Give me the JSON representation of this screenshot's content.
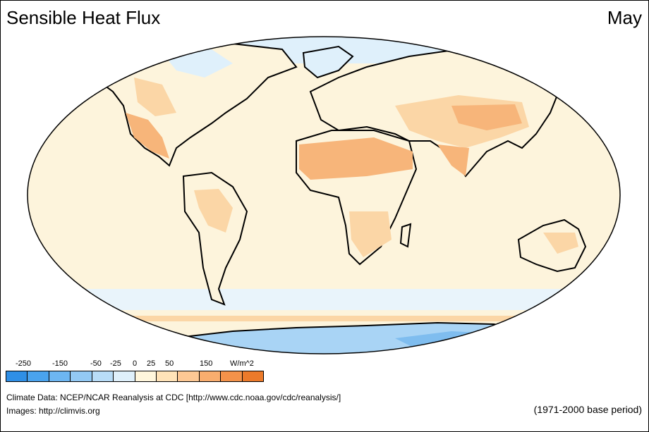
{
  "header": {
    "title": "Sensible Heat Flux",
    "month": "May"
  },
  "legend": {
    "labels": [
      "-250",
      "-150",
      "-50",
      "-25",
      "0",
      "25",
      "50",
      "150",
      "W/m^2"
    ],
    "colors": [
      "#2f8fe6",
      "#4aa3ee",
      "#6db6f2",
      "#93c9f4",
      "#b8dcf7",
      "#dff0fb",
      "#fff6dc",
      "#ffe3b8",
      "#fdc894",
      "#f9ad6e",
      "#f3924a",
      "#ec7a2a"
    ]
  },
  "map": {
    "ocean_color": "#fdf4dc",
    "land_warm": "#f7b57a",
    "land_mild": "#fbd6a6",
    "polar_cool": "#a9d4f5",
    "polar_cold": "#7fbdef"
  },
  "footer": {
    "data_credit": "Climate Data:  NCEP/NCAR Reanalysis at CDC [http://www.cdc.noaa.gov/cdc/reanalysis/]",
    "image_credit": "Images:  http://climvis.org",
    "base_period": "(1971-2000 base period)"
  }
}
